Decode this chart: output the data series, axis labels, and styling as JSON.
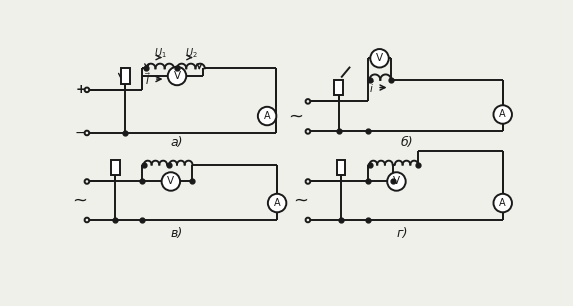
{
  "bg_color": "#f0f0eb",
  "line_color": "#1a1a1a",
  "lw": 1.4,
  "fig_w": 5.73,
  "fig_h": 3.06,
  "labels": [
    "а)",
    "б)",
    "в)",
    "г)"
  ]
}
